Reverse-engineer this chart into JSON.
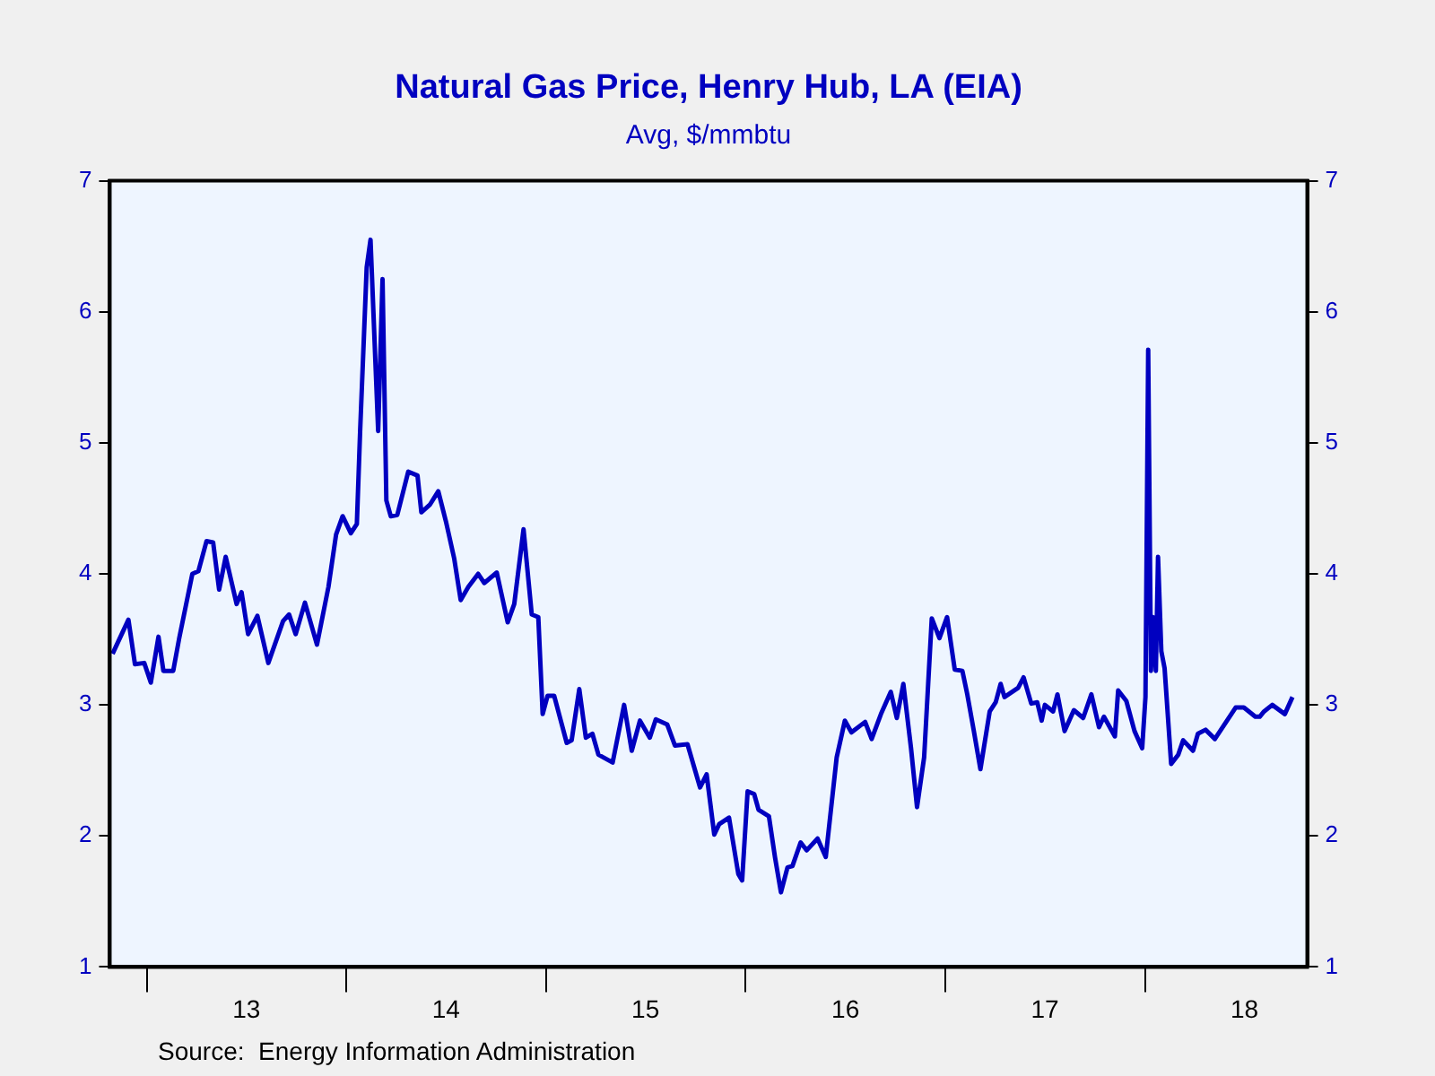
{
  "chart_data": {
    "type": "line",
    "title": "Natural Gas Price, Henry Hub, LA (EIA)",
    "subtitle": "Avg, $/mmbtu",
    "annotations": [
      "Source:  Energy Information Administration"
    ],
    "x": [
      "2012-10-30",
      "2012-11-28",
      "2012-12-10",
      "2012-12-27",
      "2013-01-08",
      "2013-01-22",
      "2013-01-31",
      "2013-02-18",
      "2013-03-01",
      "2013-03-25",
      "2013-04-05",
      "2013-04-20",
      "2013-05-02",
      "2013-05-13",
      "2013-05-25",
      "2013-06-14",
      "2013-06-23",
      "2013-07-05",
      "2013-07-22",
      "2013-08-11",
      "2013-09-07",
      "2013-09-18",
      "2013-09-30",
      "2013-10-17",
      "2013-11-08",
      "2013-11-29",
      "2013-12-13",
      "2013-12-25",
      "2014-01-09",
      "2014-01-20",
      "2014-01-26",
      "2014-02-07",
      "2014-02-14",
      "2014-02-28",
      "2014-03-08",
      "2014-03-15",
      "2014-03-23",
      "2014-04-04",
      "2014-04-24",
      "2014-05-11",
      "2014-05-18",
      "2014-06-03",
      "2014-06-18",
      "2014-07-02",
      "2014-07-17",
      "2014-07-29",
      "2014-08-12",
      "2014-08-30",
      "2014-09-10",
      "2014-10-03",
      "2014-10-23",
      "2014-11-04",
      "2014-11-21",
      "2014-12-06",
      "2014-12-18",
      "2014-12-26",
      "2015-01-04",
      "2015-01-16",
      "2015-02-08",
      "2015-02-17",
      "2015-03-03",
      "2015-03-15",
      "2015-03-27",
      "2015-04-07",
      "2015-05-03",
      "2015-05-24",
      "2015-06-07",
      "2015-06-22",
      "2015-07-10",
      "2015-07-21",
      "2015-08-11",
      "2015-08-25",
      "2015-09-17",
      "2015-10-10",
      "2015-10-22",
      "2015-11-05",
      "2015-11-14",
      "2015-12-02",
      "2015-12-19",
      "2015-12-26",
      "2016-01-05",
      "2016-01-17",
      "2016-01-25",
      "2016-02-13",
      "2016-02-24",
      "2016-03-06",
      "2016-03-18",
      "2016-03-27",
      "2016-04-11",
      "2016-04-22",
      "2016-05-12",
      "2016-05-27",
      "2016-06-16",
      "2016-07-01",
      "2016-07-13",
      "2016-08-07",
      "2016-08-19",
      "2016-09-05",
      "2016-09-23",
      "2016-10-04",
      "2016-10-16",
      "2016-10-30",
      "2016-11-10",
      "2016-11-23",
      "2016-12-07",
      "2016-12-21",
      "2017-01-04",
      "2017-01-18",
      "2017-02-01",
      "2017-02-10",
      "2017-02-22",
      "2017-03-06",
      "2017-03-23",
      "2017-04-03",
      "2017-04-12",
      "2017-04-19",
      "2017-05-14",
      "2017-05-24",
      "2017-06-07",
      "2017-06-18",
      "2017-06-26",
      "2017-07-02",
      "2017-07-17",
      "2017-07-25",
      "2017-08-07",
      "2017-08-24",
      "2017-09-10",
      "2017-09-25",
      "2017-10-09",
      "2017-10-18",
      "2017-10-26",
      "2017-11-07",
      "2017-11-13",
      "2017-11-28",
      "2017-12-13",
      "2017-12-27",
      "2018-01-02",
      "2018-01-07",
      "2018-01-12",
      "2018-01-16",
      "2018-01-21",
      "2018-01-25",
      "2018-01-31",
      "2018-02-06",
      "2018-02-18",
      "2018-03-03",
      "2018-03-12",
      "2018-03-30",
      "2018-04-08",
      "2018-04-22",
      "2018-05-09",
      "2018-06-16",
      "2018-07-01",
      "2018-07-22",
      "2018-07-30",
      "2018-08-07",
      "2018-08-22",
      "2018-09-14",
      "2018-09-28"
    ],
    "series": [
      {
        "color": "#0000c0",
        "values": [
          3.39,
          3.65,
          3.31,
          3.32,
          3.17,
          3.52,
          3.26,
          3.26,
          3.51,
          4.0,
          4.02,
          4.25,
          4.24,
          3.88,
          4.13,
          3.77,
          3.86,
          3.54,
          3.68,
          3.32,
          3.64,
          3.69,
          3.54,
          3.78,
          3.46,
          3.9,
          4.3,
          4.44,
          4.31,
          4.38,
          5.09,
          6.34,
          6.55,
          5.09,
          6.25,
          4.56,
          4.44,
          4.45,
          4.78,
          4.75,
          4.47,
          4.53,
          4.63,
          4.4,
          4.12,
          3.8,
          3.9,
          4.0,
          3.93,
          4.01,
          3.63,
          3.77,
          4.34,
          3.69,
          3.67,
          2.93,
          3.07,
          3.07,
          2.71,
          2.73,
          3.12,
          2.75,
          2.78,
          2.62,
          2.56,
          3.0,
          2.65,
          2.88,
          2.75,
          2.89,
          2.85,
          2.69,
          2.7,
          2.37,
          2.47,
          2.01,
          2.09,
          2.14,
          1.71,
          1.66,
          2.34,
          2.32,
          2.2,
          2.15,
          1.84,
          1.57,
          1.76,
          1.77,
          1.95,
          1.89,
          1.98,
          1.84,
          2.6,
          2.88,
          2.79,
          2.87,
          2.74,
          2.93,
          3.1,
          2.9,
          3.16,
          2.67,
          2.22,
          2.6,
          3.66,
          3.51,
          3.67,
          3.27,
          3.26,
          3.08,
          2.8,
          2.51,
          2.95,
          3.02,
          3.16,
          3.06,
          3.13,
          3.21,
          3.01,
          3.02,
          2.88,
          3.0,
          2.95,
          3.08,
          2.8,
          2.96,
          2.9,
          3.08,
          2.83,
          2.91,
          2.85,
          2.76,
          3.11,
          3.03,
          2.8,
          2.67,
          3.06,
          5.71,
          3.26,
          3.67,
          3.26,
          4.13,
          3.41,
          3.28,
          2.55,
          2.62,
          2.73,
          2.65,
          2.78,
          2.81,
          2.74,
          2.98,
          2.98,
          2.91,
          2.91,
          2.95,
          3.0,
          2.93,
          3.06
        ]
      }
    ],
    "xlim": [
      "2012-10-25",
      "2018-10-25"
    ],
    "xticks": [
      {
        "value": "2013-01-01",
        "label": null
      },
      {
        "value": "2013-07-02",
        "label": "13"
      },
      {
        "value": "2014-01-01",
        "label": null
      },
      {
        "value": "2014-07-02",
        "label": "14"
      },
      {
        "value": "2015-01-01",
        "label": null
      },
      {
        "value": "2015-07-02",
        "label": "15"
      },
      {
        "value": "2016-01-01",
        "label": null
      },
      {
        "value": "2016-07-02",
        "label": "16"
      },
      {
        "value": "2017-01-01",
        "label": null
      },
      {
        "value": "2017-07-02",
        "label": "17"
      },
      {
        "value": "2018-01-01",
        "label": null
      },
      {
        "value": "2018-07-02",
        "label": "18"
      }
    ],
    "ylim": [
      1,
      7
    ],
    "yticks": [
      1,
      2,
      3,
      4,
      5,
      6,
      7
    ],
    "y2lim": [
      1,
      7
    ],
    "y2ticks": [
      1,
      2,
      3,
      4,
      5,
      6,
      7
    ],
    "grid": false,
    "legend": false,
    "marker": "none",
    "line_style": "solid"
  }
}
